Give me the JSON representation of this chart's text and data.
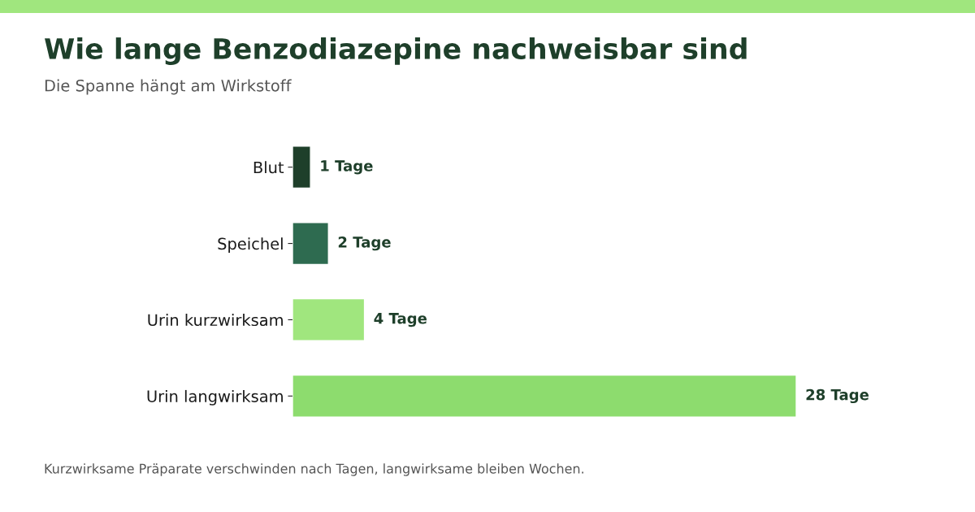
{
  "chart_data": {
    "type": "bar",
    "orientation": "horizontal",
    "title": "Wie lange Benzodiazepine nachweisbar sind",
    "subtitle": "Die Spanne hängt am Wirkstoff",
    "categories": [
      "Blut",
      "Speichel",
      "Urin kurzwirksam",
      "Urin langwirksam"
    ],
    "values": [
      1,
      2,
      4,
      28
    ],
    "colors": [
      "#1e3f2a",
      "#2e6b50",
      "#a0e67e",
      "#8ddc6e"
    ],
    "value_labels": [
      "1 Tage",
      "2 Tage",
      "4 Tage",
      "28 Tage"
    ],
    "tick_labels": "y",
    "grid": false,
    "legend": false,
    "annotations": [
      "Kurzwirksame Präparate verschwinden nach Tagen, langwirksame bleiben Wochen."
    ]
  }
}
